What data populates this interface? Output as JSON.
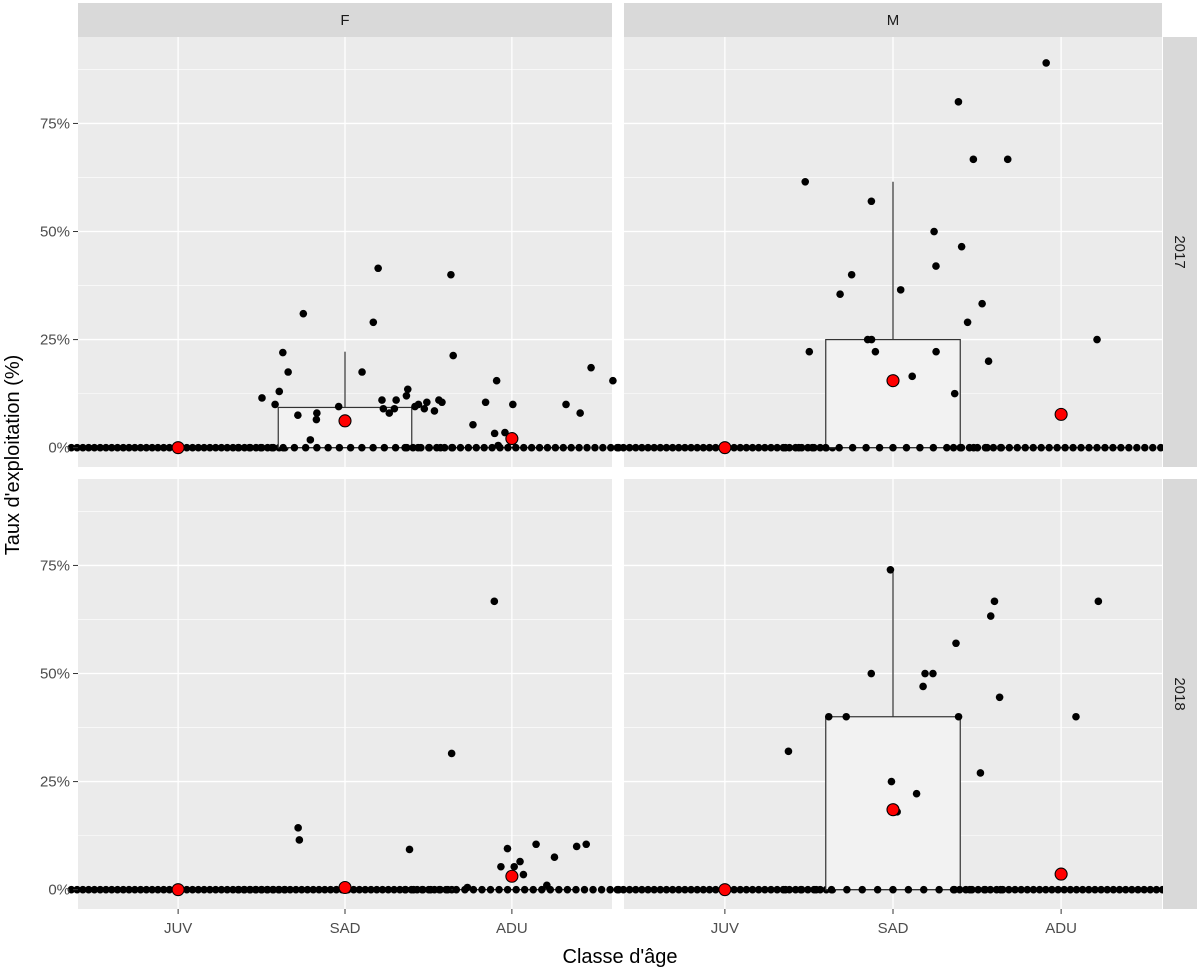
{
  "chart_data": {
    "type": "scatter",
    "xlabel": "Classe d'âge",
    "ylabel": "Taux d'exploitation (%)",
    "categories": [
      "JUV",
      "SAD",
      "ADU"
    ],
    "y_ticks": [
      "0%",
      "25%",
      "50%",
      "75%"
    ],
    "ylim": [
      0,
      0.95
    ],
    "col_facets": [
      "F",
      "M"
    ],
    "row_facets": [
      "2017",
      "2018"
    ],
    "colors": {
      "panel_bg": "#EBEBEB",
      "strip_bg": "#D9D9D9",
      "grid_major": "#FFFFFF",
      "point": "#000000",
      "mean_point": "#FF0000",
      "box_fill": "#F2F2F2",
      "box_line": "#333333"
    },
    "panels": [
      {
        "col": "F",
        "row": "2017",
        "groups": [
          {
            "category": "JUV",
            "box": {
              "q1": 0,
              "median": 0,
              "q3": 0,
              "whisker_low": 0,
              "whisker_high": 0
            },
            "mean": 0.0,
            "values": [
              0,
              0,
              0,
              0,
              0,
              0,
              0,
              0,
              0,
              0,
              0,
              0,
              0,
              0,
              0,
              0,
              0,
              0,
              0,
              0,
              0,
              0,
              0,
              0,
              0,
              0,
              0,
              0,
              0,
              0,
              0,
              0,
              0,
              0,
              0,
              0,
              0,
              0
            ]
          },
          {
            "category": "SAD",
            "box": {
              "q1": 0,
              "median": 0,
              "q3": 0.093,
              "whisker_low": 0,
              "whisker_high": 0.222
            },
            "mean": 0.062,
            "values": [
              0.415,
              0.31,
              0.29,
              0.4,
              0.09,
              0.11,
              0.1,
              0.105,
              0.08,
              0.095,
              0.11,
              0.018,
              0.135,
              0.13,
              0.175,
              0.175,
              0.22,
              0.12,
              0.09,
              0.1,
              0.115,
              0.095,
              0.09,
              0.065,
              0.075,
              0.08,
              0.085,
              0,
              0,
              0,
              0,
              0,
              0,
              0,
              0,
              0,
              0,
              0,
              0,
              0,
              0,
              0,
              0,
              0,
              0,
              0,
              0
            ]
          },
          {
            "category": "ADU",
            "box": {
              "q1": 0,
              "median": 0,
              "q3": 0,
              "whisker_low": 0,
              "whisker_high": 0
            },
            "mean": 0.021,
            "values": [
              0.185,
              0.033,
              0.155,
              0.08,
              0.105,
              0.11,
              0.053,
              0.105,
              0.1,
              0.155,
              0.035,
              0.1,
              0.213,
              0.005,
              0,
              0,
              0,
              0,
              0,
              0,
              0,
              0,
              0,
              0,
              0,
              0,
              0,
              0,
              0,
              0,
              0,
              0,
              0,
              0,
              0,
              0,
              0,
              0,
              0,
              0,
              0,
              0
            ]
          }
        ]
      },
      {
        "col": "M",
        "row": "2017",
        "groups": [
          {
            "category": "JUV",
            "box": {
              "q1": 0,
              "median": 0,
              "q3": 0,
              "whisker_low": 0,
              "whisker_high": 0
            },
            "mean": 0.0,
            "values": [
              0,
              0,
              0,
              0,
              0,
              0,
              0,
              0,
              0,
              0,
              0,
              0,
              0,
              0,
              0,
              0,
              0,
              0,
              0,
              0,
              0,
              0,
              0,
              0,
              0,
              0,
              0,
              0,
              0,
              0,
              0,
              0,
              0,
              0,
              0,
              0
            ]
          },
          {
            "category": "SAD",
            "box": {
              "q1": 0,
              "median": 0,
              "q3": 0.25,
              "whisker_low": 0,
              "whisker_high": 0.615
            },
            "mean": 0.155,
            "values": [
              0.667,
              0.465,
              0.4,
              0.365,
              0.29,
              0.222,
              0.222,
              0.165,
              0.615,
              0.5,
              0.57,
              0.42,
              0.355,
              0.25,
              0.25,
              0.222,
              0.2,
              0,
              0,
              0,
              0,
              0,
              0,
              0,
              0,
              0,
              0,
              0,
              0,
              0,
              0,
              0,
              0,
              0
            ]
          },
          {
            "category": "ADU",
            "box": {
              "q1": 0,
              "median": 0,
              "q3": 0,
              "whisker_low": 0,
              "whisker_high": 0
            },
            "mean": 0.077,
            "values": [
              0.89,
              0.8,
              0.667,
              0.333,
              0.25,
              0.125,
              0,
              0,
              0,
              0,
              0,
              0,
              0,
              0,
              0,
              0,
              0,
              0,
              0,
              0,
              0,
              0,
              0,
              0,
              0,
              0,
              0,
              0,
              0,
              0,
              0,
              0,
              0,
              0
            ]
          }
        ]
      },
      {
        "col": "F",
        "row": "2018",
        "groups": [
          {
            "category": "JUV",
            "box": {
              "q1": 0,
              "median": 0,
              "q3": 0,
              "whisker_low": 0,
              "whisker_high": 0
            },
            "mean": 0.0,
            "values": [
              0,
              0,
              0,
              0,
              0,
              0,
              0,
              0,
              0,
              0,
              0,
              0,
              0,
              0,
              0,
              0,
              0,
              0,
              0,
              0,
              0,
              0,
              0,
              0,
              0,
              0,
              0,
              0,
              0,
              0,
              0,
              0,
              0,
              0,
              0,
              0,
              0,
              0
            ]
          },
          {
            "category": "SAD",
            "box": {
              "q1": 0,
              "median": 0,
              "q3": 0,
              "whisker_low": 0,
              "whisker_high": 0
            },
            "mean": 0.005,
            "values": [
              0.115,
              0.143,
              0,
              0,
              0,
              0,
              0,
              0,
              0,
              0,
              0,
              0,
              0,
              0,
              0,
              0,
              0,
              0,
              0,
              0,
              0,
              0,
              0,
              0,
              0,
              0,
              0,
              0,
              0,
              0,
              0,
              0,
              0,
              0,
              0,
              0,
              0,
              0,
              0,
              0
            ]
          },
          {
            "category": "ADU",
            "box": {
              "q1": 0,
              "median": 0,
              "q3": 0,
              "whisker_low": 0,
              "whisker_high": 0
            },
            "mean": 0.031,
            "values": [
              0.667,
              0.315,
              0.1,
              0.095,
              0.065,
              0.105,
              0.105,
              0.075,
              0.093,
              0.035,
              0.053,
              0.053,
              0.01,
              0.005,
              0,
              0,
              0,
              0,
              0,
              0,
              0,
              0,
              0,
              0,
              0,
              0,
              0,
              0,
              0,
              0,
              0,
              0,
              0,
              0,
              0,
              0,
              0,
              0,
              0,
              0
            ]
          }
        ]
      },
      {
        "col": "M",
        "row": "2018",
        "groups": [
          {
            "category": "JUV",
            "box": {
              "q1": 0,
              "median": 0,
              "q3": 0,
              "whisker_low": 0,
              "whisker_high": 0
            },
            "mean": 0.0,
            "values": [
              0,
              0,
              0,
              0,
              0,
              0,
              0,
              0,
              0,
              0,
              0,
              0,
              0,
              0,
              0,
              0,
              0,
              0,
              0,
              0,
              0,
              0,
              0,
              0,
              0,
              0,
              0,
              0,
              0,
              0,
              0,
              0,
              0,
              0,
              0,
              0
            ]
          },
          {
            "category": "SAD",
            "box": {
              "q1": 0,
              "median": 0,
              "q3": 0.4,
              "whisker_low": 0,
              "whisker_high": 0.74
            },
            "mean": 0.185,
            "values": [
              0.74,
              0.633,
              0.4,
              0.18,
              0.27,
              0.222,
              0.32,
              0.47,
              0.5,
              0.5,
              0.4,
              0.5,
              0.4,
              0.57,
              0.445,
              0.25,
              0,
              0,
              0,
              0,
              0,
              0,
              0,
              0,
              0,
              0,
              0,
              0,
              0,
              0,
              0
            ]
          },
          {
            "category": "ADU",
            "box": {
              "q1": 0,
              "median": 0,
              "q3": 0,
              "whisker_low": 0,
              "whisker_high": 0
            },
            "mean": 0.036,
            "values": [
              0.667,
              0.4,
              0.667,
              0,
              0,
              0,
              0,
              0,
              0,
              0,
              0,
              0,
              0,
              0,
              0,
              0,
              0,
              0,
              0,
              0,
              0,
              0,
              0,
              0,
              0,
              0,
              0,
              0,
              0,
              0,
              0,
              0,
              0,
              0,
              0,
              0,
              0,
              0,
              0
            ]
          }
        ]
      }
    ]
  }
}
